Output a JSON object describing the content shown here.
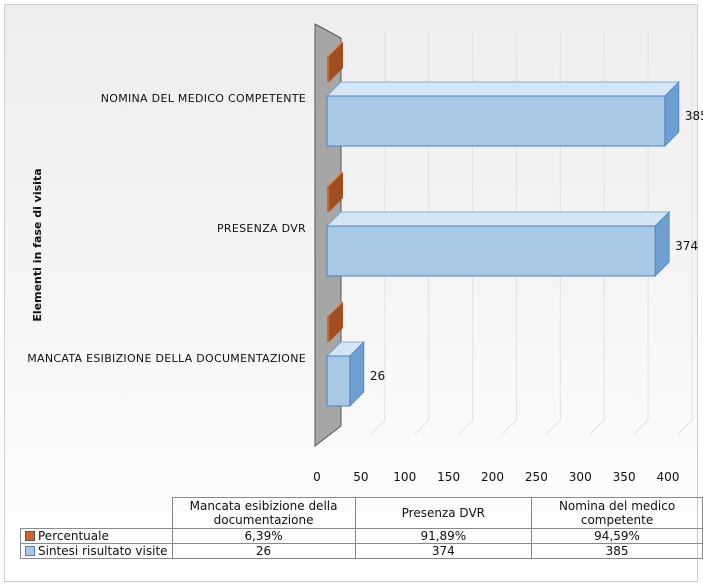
{
  "chart_data": {
    "type": "bar",
    "orientation": "horizontal",
    "title": "",
    "ylabel": "Elementi in fase di visita",
    "xlabel": "",
    "xlim": [
      0,
      400
    ],
    "xticks": [
      0,
      50,
      100,
      150,
      200,
      250,
      300,
      350,
      400
    ],
    "categories": [
      "Mancata esibizione della documentazione",
      "Presenza DVR",
      "Nomina del medico competente"
    ],
    "category_axis_labels": [
      "MANCATA ESIBIZIONE DELLA DOCUMENTAZIONE",
      "PRESENZA DVR",
      "NOMINA DEL MEDICO COMPETENTE"
    ],
    "series": [
      {
        "name": "Percentuale",
        "values": [
          0.0639,
          0.9189,
          0.9459
        ],
        "display": [
          "6,39%",
          "91,89%",
          "94,59%"
        ],
        "color": "#c96a35"
      },
      {
        "name": "Sintesi risultato visite",
        "values": [
          26,
          374,
          385
        ],
        "display": [
          "26",
          "374",
          "385"
        ],
        "color": "#a9c8e6"
      }
    ],
    "grid": true,
    "legend": "data-table"
  }
}
